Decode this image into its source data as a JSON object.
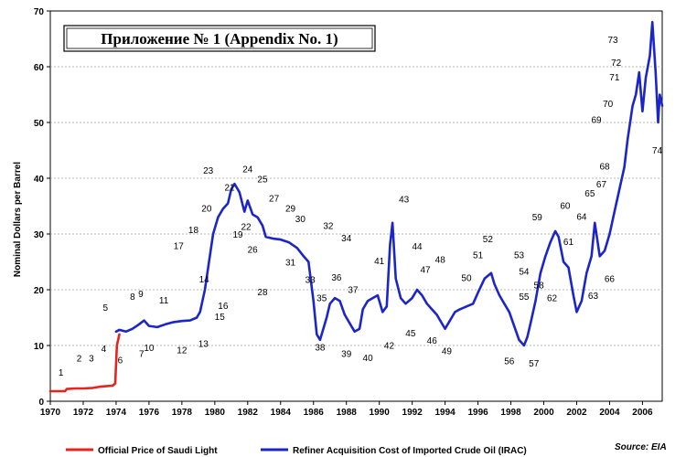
{
  "chart_data": {
    "type": "line",
    "title": "Приложение № 1 (Appendix No. 1)",
    "ylabel": "Nominal Dollars per Barrel",
    "source": "Source: EIA",
    "xlim": [
      1970,
      2007.2
    ],
    "ylim": [
      0,
      70
    ],
    "xticks": [
      "1970",
      "1972",
      "1974",
      "1976",
      "1978",
      "1980",
      "1982",
      "1984",
      "1986",
      "1988",
      "1990",
      "1992",
      "1994",
      "1996",
      "1998",
      "2000",
      "2002",
      "2004",
      "2006"
    ],
    "yticks": [
      "0",
      "10",
      "20",
      "30",
      "40",
      "50",
      "60",
      "70"
    ],
    "grid": true,
    "legend_position": "bottom",
    "series": [
      {
        "name": "Official Price of Saudi Light",
        "color": "#e8231e",
        "x": [
          1970,
          1970.9,
          1971.0,
          1971.5,
          1972.0,
          1972.6,
          1973.0,
          1973.8,
          1973.95,
          1974.05,
          1974.2
        ],
        "y": [
          1.8,
          1.8,
          2.2,
          2.3,
          2.3,
          2.4,
          2.6,
          2.8,
          3.2,
          10.0,
          12.0
        ]
      },
      {
        "name": "Refiner Acquisition Cost of Imported Crude Oil (IRAC)",
        "color": "#1c25c8",
        "x": [
          1974.0,
          1974.2,
          1974.6,
          1975.0,
          1975.4,
          1975.7,
          1976.0,
          1976.5,
          1977.0,
          1977.5,
          1978.0,
          1978.5,
          1978.9,
          1979.1,
          1979.4,
          1979.7,
          1979.9,
          1980.2,
          1980.5,
          1980.8,
          1981.0,
          1981.2,
          1981.5,
          1981.8,
          1982.0,
          1982.3,
          1982.6,
          1982.9,
          1983.1,
          1983.5,
          1984.0,
          1984.5,
          1985.0,
          1985.4,
          1985.7,
          1986.0,
          1986.2,
          1986.4,
          1986.6,
          1986.8,
          1987.0,
          1987.3,
          1987.6,
          1987.9,
          1988.2,
          1988.5,
          1988.8,
          1989.0,
          1989.3,
          1989.6,
          1989.9,
          1990.2,
          1990.45,
          1990.65,
          1990.8,
          1991.0,
          1991.3,
          1991.6,
          1992.0,
          1992.3,
          1992.6,
          1992.9,
          1993.2,
          1993.5,
          1993.8,
          1994.0,
          1994.3,
          1994.6,
          1994.9,
          1995.3,
          1995.7,
          1996.0,
          1996.4,
          1996.8,
          1997.0,
          1997.3,
          1997.6,
          1997.9,
          1998.2,
          1998.5,
          1998.8,
          1999.0,
          1999.2,
          1999.5,
          1999.8,
          2000.1,
          2000.4,
          2000.7,
          2000.9,
          2001.2,
          2001.5,
          2001.8,
          2002.0,
          2002.3,
          2002.6,
          2002.9,
          2003.1,
          2003.4,
          2003.7,
          2004.0,
          2004.3,
          2004.6,
          2004.9,
          2005.1,
          2005.4,
          2005.6,
          2005.8,
          2006.0,
          2006.2,
          2006.45,
          2006.6,
          2006.8,
          2006.95,
          2007.05,
          2007.2
        ],
        "y": [
          12.5,
          12.8,
          12.5,
          13.0,
          13.8,
          14.5,
          13.5,
          13.3,
          13.8,
          14.2,
          14.4,
          14.5,
          15.0,
          16.0,
          20.0,
          26.0,
          30.0,
          33.0,
          34.5,
          35.5,
          38.0,
          39.0,
          37.5,
          34.0,
          36.0,
          33.5,
          33.0,
          31.5,
          29.5,
          29.2,
          29.0,
          28.5,
          27.5,
          26.0,
          25.0,
          18.0,
          12.0,
          11.0,
          13.0,
          15.0,
          17.5,
          18.5,
          18.0,
          15.5,
          14.0,
          12.5,
          13.0,
          16.5,
          18.0,
          18.5,
          19.0,
          16.0,
          17.0,
          28.0,
          32.0,
          22.0,
          18.5,
          17.5,
          18.5,
          20.0,
          19.0,
          17.5,
          16.5,
          15.5,
          14.0,
          13.0,
          14.5,
          16.0,
          16.5,
          17.0,
          17.5,
          19.5,
          22.0,
          23.0,
          21.0,
          19.0,
          17.5,
          16.0,
          13.5,
          11.0,
          10.0,
          11.5,
          14.0,
          18.0,
          23.0,
          26.0,
          28.5,
          30.5,
          29.5,
          25.0,
          24.0,
          19.0,
          16.0,
          18.0,
          23.0,
          26.0,
          32.0,
          26.0,
          27.0,
          30.0,
          34.0,
          38.0,
          42.0,
          47.0,
          53.0,
          55.0,
          59.0,
          52.0,
          58.0,
          62.0,
          68.0,
          59.0,
          50.0,
          55.0,
          53.0
        ]
      }
    ],
    "annotations": [
      {
        "id": "1",
        "x": 1970.65,
        "y": 5.2
      },
      {
        "id": "2",
        "x": 1971.75,
        "y": 7.7
      },
      {
        "id": "3",
        "x": 1972.5,
        "y": 7.7
      },
      {
        "id": "4",
        "x": 1973.25,
        "y": 9.4
      },
      {
        "id": "5",
        "x": 1973.35,
        "y": 16.8
      },
      {
        "id": "6",
        "x": 1974.25,
        "y": 7.4
      },
      {
        "id": "7",
        "x": 1975.55,
        "y": 8.5
      },
      {
        "id": "8",
        "x": 1975.0,
        "y": 18.8
      },
      {
        "id": "9",
        "x": 1975.5,
        "y": 19.3
      },
      {
        "id": "10",
        "x": 1976.0,
        "y": 9.6
      },
      {
        "id": "11",
        "x": 1976.9,
        "y": 18.1
      },
      {
        "id": "12",
        "x": 1978.0,
        "y": 9.2
      },
      {
        "id": "13",
        "x": 1979.3,
        "y": 10.3
      },
      {
        "id": "14",
        "x": 1979.35,
        "y": 21.9
      },
      {
        "id": "15",
        "x": 1980.3,
        "y": 15.2
      },
      {
        "id": "16",
        "x": 1980.5,
        "y": 17.1
      },
      {
        "id": "17",
        "x": 1977.8,
        "y": 27.9
      },
      {
        "id": "18",
        "x": 1978.7,
        "y": 30.7
      },
      {
        "id": "19",
        "x": 1981.4,
        "y": 29.9
      },
      {
        "id": "20",
        "x": 1979.5,
        "y": 34.6
      },
      {
        "id": "21",
        "x": 1980.9,
        "y": 38.4
      },
      {
        "id": "22",
        "x": 1981.9,
        "y": 31.3
      },
      {
        "id": "23",
        "x": 1979.6,
        "y": 41.4
      },
      {
        "id": "24",
        "x": 1982.0,
        "y": 41.6
      },
      {
        "id": "25",
        "x": 1982.9,
        "y": 39.8
      },
      {
        "id": "26",
        "x": 1982.3,
        "y": 27.2
      },
      {
        "id": "27",
        "x": 1983.6,
        "y": 36.4
      },
      {
        "id": "28",
        "x": 1982.9,
        "y": 19.6
      },
      {
        "id": "29",
        "x": 1984.6,
        "y": 34.6
      },
      {
        "id": "30",
        "x": 1985.2,
        "y": 32.7
      },
      {
        "id": "31",
        "x": 1984.6,
        "y": 24.9
      },
      {
        "id": "32",
        "x": 1986.9,
        "y": 31.5
      },
      {
        "id": "33",
        "x": 1985.8,
        "y": 21.8
      },
      {
        "id": "34",
        "x": 1988.0,
        "y": 29.3
      },
      {
        "id": "35",
        "x": 1986.5,
        "y": 18.5
      },
      {
        "id": "36",
        "x": 1987.4,
        "y": 22.2
      },
      {
        "id": "37",
        "x": 1988.4,
        "y": 20.0
      },
      {
        "id": "38",
        "x": 1986.4,
        "y": 9.7
      },
      {
        "id": "39",
        "x": 1988.0,
        "y": 8.5
      },
      {
        "id": "40",
        "x": 1989.3,
        "y": 7.8
      },
      {
        "id": "41",
        "x": 1990.0,
        "y": 25.2
      },
      {
        "id": "42",
        "x": 1990.6,
        "y": 10.0
      },
      {
        "id": "43",
        "x": 1991.5,
        "y": 36.2
      },
      {
        "id": "44",
        "x": 1992.3,
        "y": 27.8
      },
      {
        "id": "45",
        "x": 1991.9,
        "y": 12.2
      },
      {
        "id": "46",
        "x": 1993.2,
        "y": 10.9
      },
      {
        "id": "47",
        "x": 1992.8,
        "y": 23.6
      },
      {
        "id": "48",
        "x": 1993.7,
        "y": 25.4
      },
      {
        "id": "49",
        "x": 1994.1,
        "y": 9.0
      },
      {
        "id": "50",
        "x": 1995.3,
        "y": 22.1
      },
      {
        "id": "51",
        "x": 1996.0,
        "y": 26.2
      },
      {
        "id": "52",
        "x": 1996.6,
        "y": 29.1
      },
      {
        "id": "53",
        "x": 1998.5,
        "y": 26.2
      },
      {
        "id": "54",
        "x": 1998.8,
        "y": 23.3
      },
      {
        "id": "55",
        "x": 1998.8,
        "y": 18.8
      },
      {
        "id": "56",
        "x": 1997.9,
        "y": 7.2
      },
      {
        "id": "57",
        "x": 1999.4,
        "y": 6.8
      },
      {
        "id": "58",
        "x": 1999.7,
        "y": 20.8
      },
      {
        "id": "59",
        "x": 1999.6,
        "y": 33.0
      },
      {
        "id": "60",
        "x": 2001.3,
        "y": 35.1
      },
      {
        "id": "61",
        "x": 2001.5,
        "y": 28.6
      },
      {
        "id": "62",
        "x": 2000.5,
        "y": 18.5
      },
      {
        "id": "63",
        "x": 2003.0,
        "y": 18.9
      },
      {
        "id": "64",
        "x": 2002.3,
        "y": 33.1
      },
      {
        "id": "65",
        "x": 2002.8,
        "y": 37.3
      },
      {
        "id": "66",
        "x": 2004.0,
        "y": 22.0
      },
      {
        "id": "67",
        "x": 2003.5,
        "y": 38.9
      },
      {
        "id": "68",
        "x": 2003.7,
        "y": 42.1
      },
      {
        "id": "69",
        "x": 2003.2,
        "y": 50.5
      },
      {
        "id": "70",
        "x": 2003.9,
        "y": 53.4
      },
      {
        "id": "71",
        "x": 2004.3,
        "y": 58.1
      },
      {
        "id": "72",
        "x": 2004.4,
        "y": 60.7
      },
      {
        "id": "73",
        "x": 2004.2,
        "y": 64.8
      },
      {
        "id": "74",
        "x": 2006.9,
        "y": 45.0
      }
    ]
  }
}
